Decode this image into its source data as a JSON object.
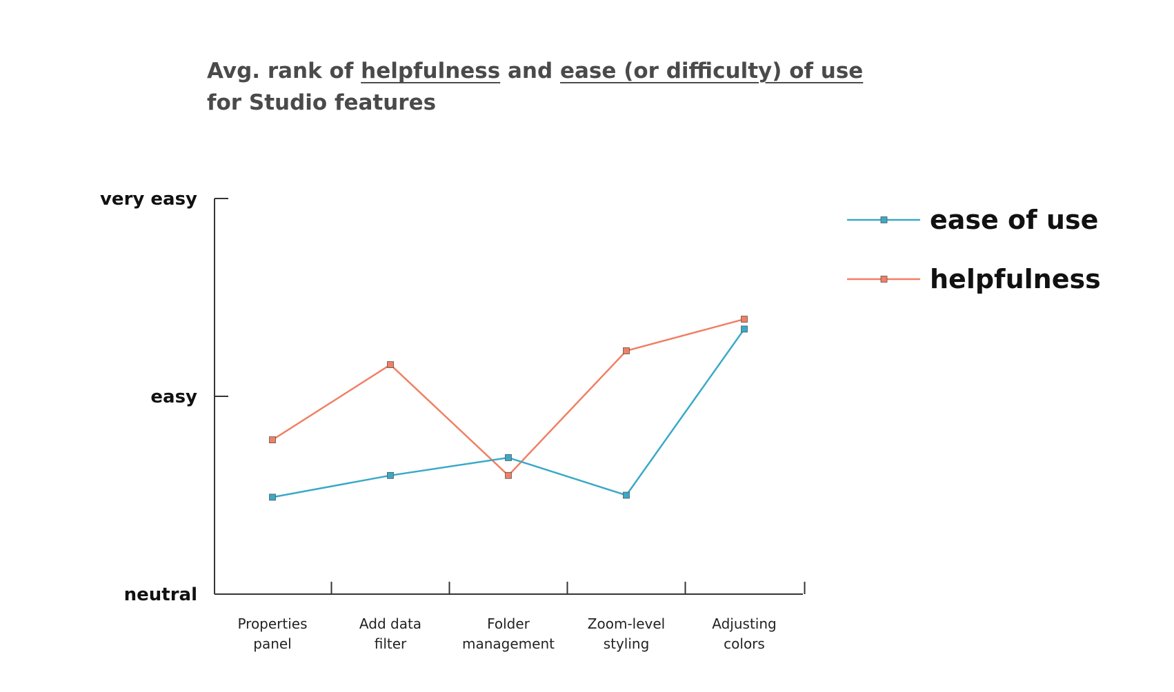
{
  "title": {
    "part1": "Avg. rank of ",
    "part2": "helpfulness",
    "part3": " and ",
    "part4": "ease (or difficulty) of use",
    "line2": "for Studio features"
  },
  "chart_data": {
    "type": "line",
    "categories": [
      [
        "Properties",
        "panel"
      ],
      [
        "Add data",
        "filter"
      ],
      [
        "Folder",
        "management"
      ],
      [
        "Zoom-level",
        "styling"
      ],
      [
        "Adjusting",
        "colors"
      ]
    ],
    "yticks": [
      {
        "label": "neutral",
        "value": 0
      },
      {
        "label": "easy",
        "value": 1
      },
      {
        "label": "very easy",
        "value": 2
      }
    ],
    "ylim": [
      0,
      2
    ],
    "legend_position": "top-right",
    "grid": false,
    "series": [
      {
        "name": "ease of use",
        "color": "#3aa9c7",
        "values": [
          0.49,
          0.6,
          0.69,
          0.5,
          1.34
        ]
      },
      {
        "name": "helpfulness",
        "color": "#f07f63",
        "values": [
          0.78,
          1.16,
          0.6,
          1.23,
          1.39
        ]
      }
    ]
  }
}
